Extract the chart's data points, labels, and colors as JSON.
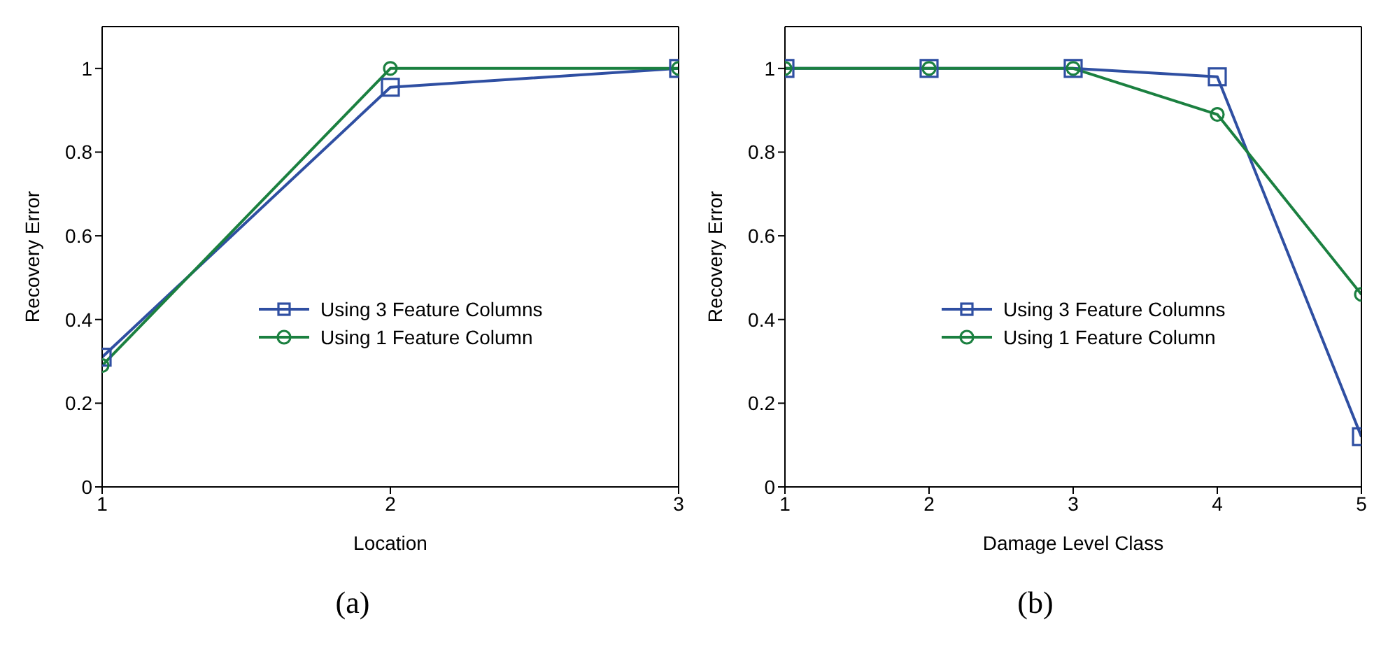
{
  "chart_data": [
    {
      "type": "line",
      "xlabel": "Location",
      "ylabel": "Recovery Error",
      "x": [
        1,
        2,
        3
      ],
      "xlim": [
        1,
        3
      ],
      "xticks": [
        1,
        2,
        3
      ],
      "ylim": [
        0,
        1.1
      ],
      "yticks": [
        0,
        0.2,
        0.4,
        0.6,
        0.8,
        1
      ],
      "legend": "right",
      "grid": false,
      "annotations": [
        "(a)"
      ],
      "series": [
        {
          "name": "Using 3 Feature Columns",
          "color": "#2f4fa2",
          "marker": "square",
          "values": [
            0.31,
            0.955,
            1
          ]
        },
        {
          "name": "Using 1 Feature Column",
          "color": "#1b8040",
          "marker": "circle",
          "values": [
            0.29,
            1,
            1
          ]
        }
      ]
    },
    {
      "type": "line",
      "xlabel": "Damage Level Class",
      "ylabel": "Recovery Error",
      "x": [
        1,
        2,
        3,
        4,
        5
      ],
      "xlim": [
        1,
        5
      ],
      "xticks": [
        1,
        2,
        3,
        4,
        5
      ],
      "ylim": [
        0,
        1.1
      ],
      "yticks": [
        0,
        0.2,
        0.4,
        0.6,
        0.8,
        1
      ],
      "legend": "right",
      "grid": false,
      "annotations": [
        "(b)"
      ],
      "series": [
        {
          "name": "Using 3 Feature Columns",
          "color": "#2f4fa2",
          "marker": "square",
          "values": [
            1,
            1,
            1,
            0.98,
            0.12
          ]
        },
        {
          "name": "Using 1 Feature Column",
          "color": "#1b8040",
          "marker": "circle",
          "values": [
            1,
            1,
            1,
            0.89,
            0.46
          ]
        }
      ]
    }
  ]
}
